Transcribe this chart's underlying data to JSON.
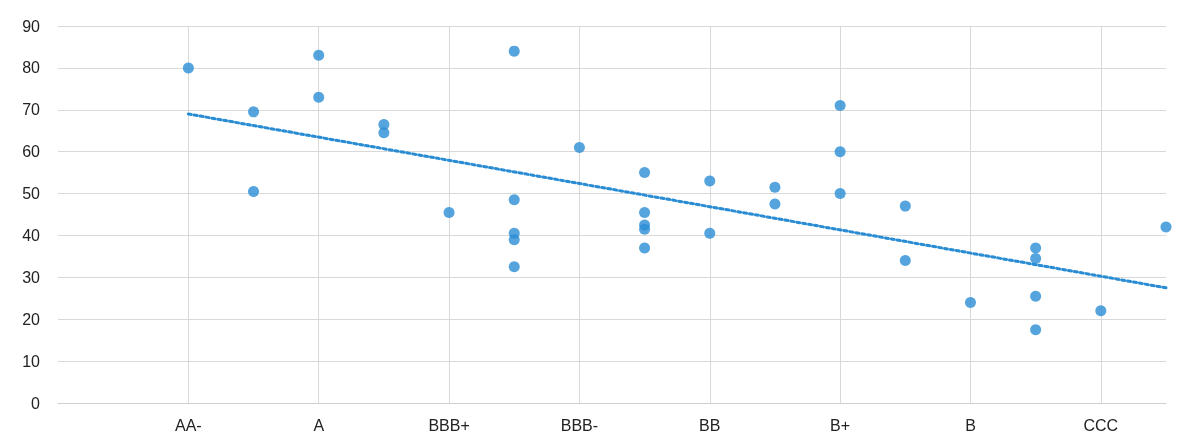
{
  "chart_data": {
    "type": "scatter",
    "categories": [
      null,
      null,
      "AA-",
      null,
      "A",
      null,
      "BBB+",
      null,
      "BBB-",
      null,
      "BB",
      null,
      "B+",
      null,
      "B",
      null,
      "CCC",
      null
    ],
    "series": [
      {
        "color": "#2a8dd4",
        "values": [
          null,
          null,
          80,
          69.5,
          83,
          66.5,
          45.5,
          84,
          61,
          55,
          53,
          51.5,
          71,
          47,
          24,
          37,
          22,
          42
        ]
      },
      {
        "color": "#2a8dd4",
        "values": [
          null,
          null,
          null,
          50.5,
          73,
          64.5,
          null,
          48.5,
          null,
          45.5,
          40.5,
          47.5,
          60,
          34,
          null,
          34.5,
          null,
          null
        ]
      },
      {
        "color": "#2a8dd4",
        "values": [
          null,
          null,
          null,
          null,
          null,
          null,
          null,
          40.5,
          null,
          42.5,
          null,
          null,
          50,
          null,
          null,
          25.5,
          null,
          null
        ]
      },
      {
        "color": "#2a8dd4",
        "values": [
          null,
          null,
          null,
          null,
          null,
          null,
          null,
          39,
          null,
          41.5,
          null,
          null,
          null,
          null,
          null,
          17.5,
          null,
          null
        ]
      },
      {
        "color": "#2a8dd4",
        "values": [
          null,
          null,
          null,
          null,
          null,
          null,
          null,
          32.5,
          null,
          37,
          null,
          null,
          null,
          null,
          null,
          null,
          null,
          null
        ]
      },
      {
        "type": "line",
        "color": "#2a8dd4",
        "line_style": "dotted",
        "marker": "none",
        "values": [
          null,
          null,
          69,
          null,
          null,
          null,
          null,
          null,
          null,
          null,
          null,
          null,
          null,
          null,
          null,
          null,
          null,
          27.5
        ]
      }
    ],
    "ylim": [
      0,
      90
    ],
    "yticks": [
      0,
      10,
      20,
      30,
      40,
      50,
      60,
      70,
      80,
      90
    ],
    "grid": true,
    "marker": "circle"
  }
}
